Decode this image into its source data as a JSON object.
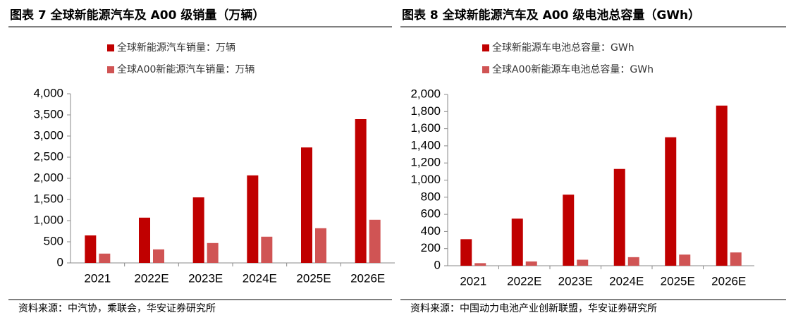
{
  "chart_data": [
    {
      "type": "bar",
      "title": "图表 7 全球新能源汽车及 A00 级销量（万辆）",
      "categories": [
        "2021",
        "2022E",
        "2023E",
        "2024E",
        "2025E",
        "2026E"
      ],
      "series": [
        {
          "name": "全球新能源汽车销量：万辆",
          "color": "#c00000",
          "values": [
            650,
            1070,
            1550,
            2070,
            2730,
            3400
          ]
        },
        {
          "name": "全球A00新能源汽车销量：万辆",
          "color": "#d05454",
          "values": [
            220,
            320,
            470,
            620,
            820,
            1020
          ]
        }
      ],
      "ylim": [
        0,
        4000
      ],
      "yticks": [
        0,
        500,
        {
          "value": 1000,
          "label": "1,000"
        },
        {
          "value": 1500,
          "label": "1,500"
        },
        {
          "value": 2000,
          "label": "2,000"
        },
        {
          "value": 2500,
          "label": "2,500"
        },
        {
          "value": 3000,
          "label": "3,000"
        },
        {
          "value": 3500,
          "label": "3,500"
        },
        {
          "value": 4000,
          "label": "4,000"
        }
      ],
      "source": "资料来源：中汽协，乘联会，华安证券研究所"
    },
    {
      "type": "bar",
      "title": "图表 8 全球新能源汽车及 A00 级电池总容量（GWh）",
      "categories": [
        "2021",
        "2022E",
        "2023E",
        "2024E",
        "2025E",
        "2026E"
      ],
      "series": [
        {
          "name": "全球新能源车电池总容量：GWh",
          "color": "#c00000",
          "values": [
            310,
            550,
            830,
            1130,
            1500,
            1870
          ]
        },
        {
          "name": "全球A00新能源车电池总容量：GWh",
          "color": "#d05454",
          "values": [
            30,
            50,
            70,
            100,
            130,
            155
          ]
        }
      ],
      "ylim": [
        0,
        2000
      ],
      "yticks": [
        0,
        200,
        400,
        600,
        800,
        {
          "value": 1000,
          "label": "1,000"
        },
        {
          "value": 1200,
          "label": "1,200"
        },
        {
          "value": 1400,
          "label": "1,400"
        },
        {
          "value": 1600,
          "label": "1,600"
        },
        {
          "value": 1800,
          "label": "1,800"
        },
        {
          "value": 2000,
          "label": "2,000"
        }
      ],
      "source": "资料来源：中国动力电池产业创新联盟，华安证券研究所"
    }
  ]
}
